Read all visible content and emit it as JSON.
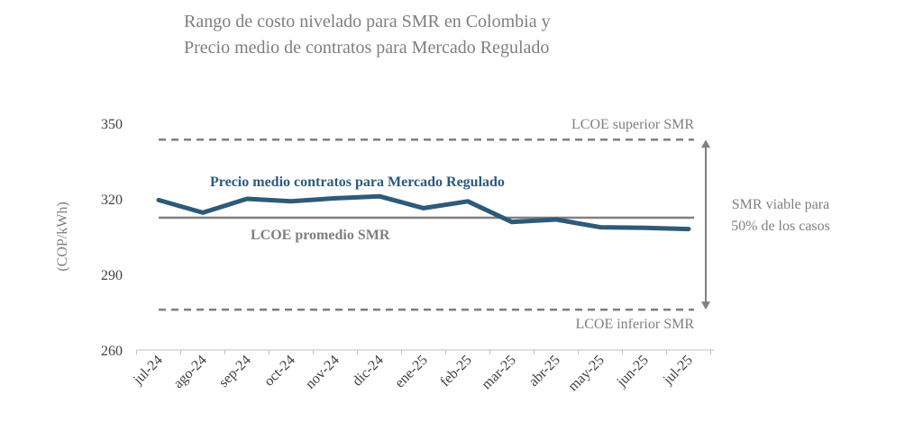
{
  "chart_data": {
    "type": "line",
    "title_lines": [
      "Rango de costo nivelado para SMR en Colombia y",
      "Precio medio de contratos para Mercado Regulado"
    ],
    "ylabel": "(COP/kWh)",
    "xlabel": "",
    "ylim": [
      260,
      350
    ],
    "yticks": [
      260,
      290,
      320,
      350
    ],
    "categories": [
      "jul-24",
      "ago-24",
      "sep-24",
      "oct-24",
      "nov-24",
      "dic-24",
      "ene-25",
      "feb-25",
      "mar-25",
      "abr-25",
      "may-25",
      "jun-25",
      "jul-25"
    ],
    "series": [
      {
        "name": "Precio medio contratos para Mercado Regulado",
        "color": "#2e5a7a",
        "values": [
          319.5,
          314.5,
          320,
          319,
          320.2,
          321,
          316.3,
          319,
          310.8,
          311.8,
          308.7,
          308.5,
          308
        ]
      }
    ],
    "reference_lines": [
      {
        "label": "LCOE superior SMR",
        "value": 343.5,
        "style": "dashed",
        "color": "#7f7f7f"
      },
      {
        "label": "LCOE promedio SMR",
        "value": 312.5,
        "style": "solid",
        "color": "#808080"
      },
      {
        "label": "LCOE inferior SMR",
        "value": 276,
        "style": "dashed",
        "color": "#7f7f7f"
      }
    ],
    "range_annotation": {
      "lines": [
        "SMR viable para",
        "50% de los casos"
      ],
      "from": 276,
      "to": 343.5
    },
    "grid": false,
    "legend": "none"
  }
}
